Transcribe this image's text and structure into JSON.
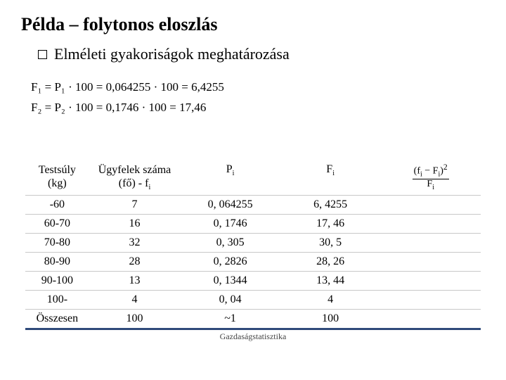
{
  "title": "Példa – folytonos eloszlás",
  "subtitle": "Elméleti gyakoriságok meghatározása",
  "formulas": {
    "line1": "F₁ = P₁ · 100 = 0,064255 · 100 = 6,4255",
    "line2": "F₂ = P₂ · 100 = 0,1746 · 100 = 17,46"
  },
  "table": {
    "headers": {
      "c0a": "Testsúly",
      "c0b": "(kg)",
      "c1a": "Ügyfelek száma",
      "c1b_pre": "(fő) - f",
      "c2": "P",
      "c3": "F",
      "frac_num_pre": "(f",
      "frac_num_mid": " − F",
      "frac_num_post": ")",
      "frac_exp": "2",
      "frac_den": "F"
    },
    "rows": [
      {
        "c0": "-60",
        "c1": "7",
        "c2": "0, 064255",
        "c3": "6, 4255"
      },
      {
        "c0": "60-70",
        "c1": "16",
        "c2": "0, 1746",
        "c3": "17, 46"
      },
      {
        "c0": "70-80",
        "c1": "32",
        "c2": "0, 305",
        "c3": "30, 5"
      },
      {
        "c0": "80-90",
        "c1": "28",
        "c2": "0, 2826",
        "c3": "28, 26"
      },
      {
        "c0": "90-100",
        "c1": "13",
        "c2": "0, 1344",
        "c3": "13, 44"
      },
      {
        "c0": "100-",
        "c1": "4",
        "c2": "0, 04",
        "c3": "4"
      },
      {
        "c0": "Összesen",
        "c1": "100",
        "c2": "~1",
        "c3": "100"
      }
    ]
  },
  "footer": "Gazdaságstatisztika",
  "styling": {
    "page_bg": "#ffffff",
    "text_color": "#000000",
    "underline_color": "#2f4a7a",
    "grid_color": "#c8c8c8",
    "title_fontsize": 26,
    "subtitle_fontsize": 22,
    "formula_fontsize": 17,
    "table_fontsize": 16,
    "footer_fontsize": 12,
    "col_widths_pct": [
      14,
      20,
      22,
      22,
      22
    ]
  }
}
